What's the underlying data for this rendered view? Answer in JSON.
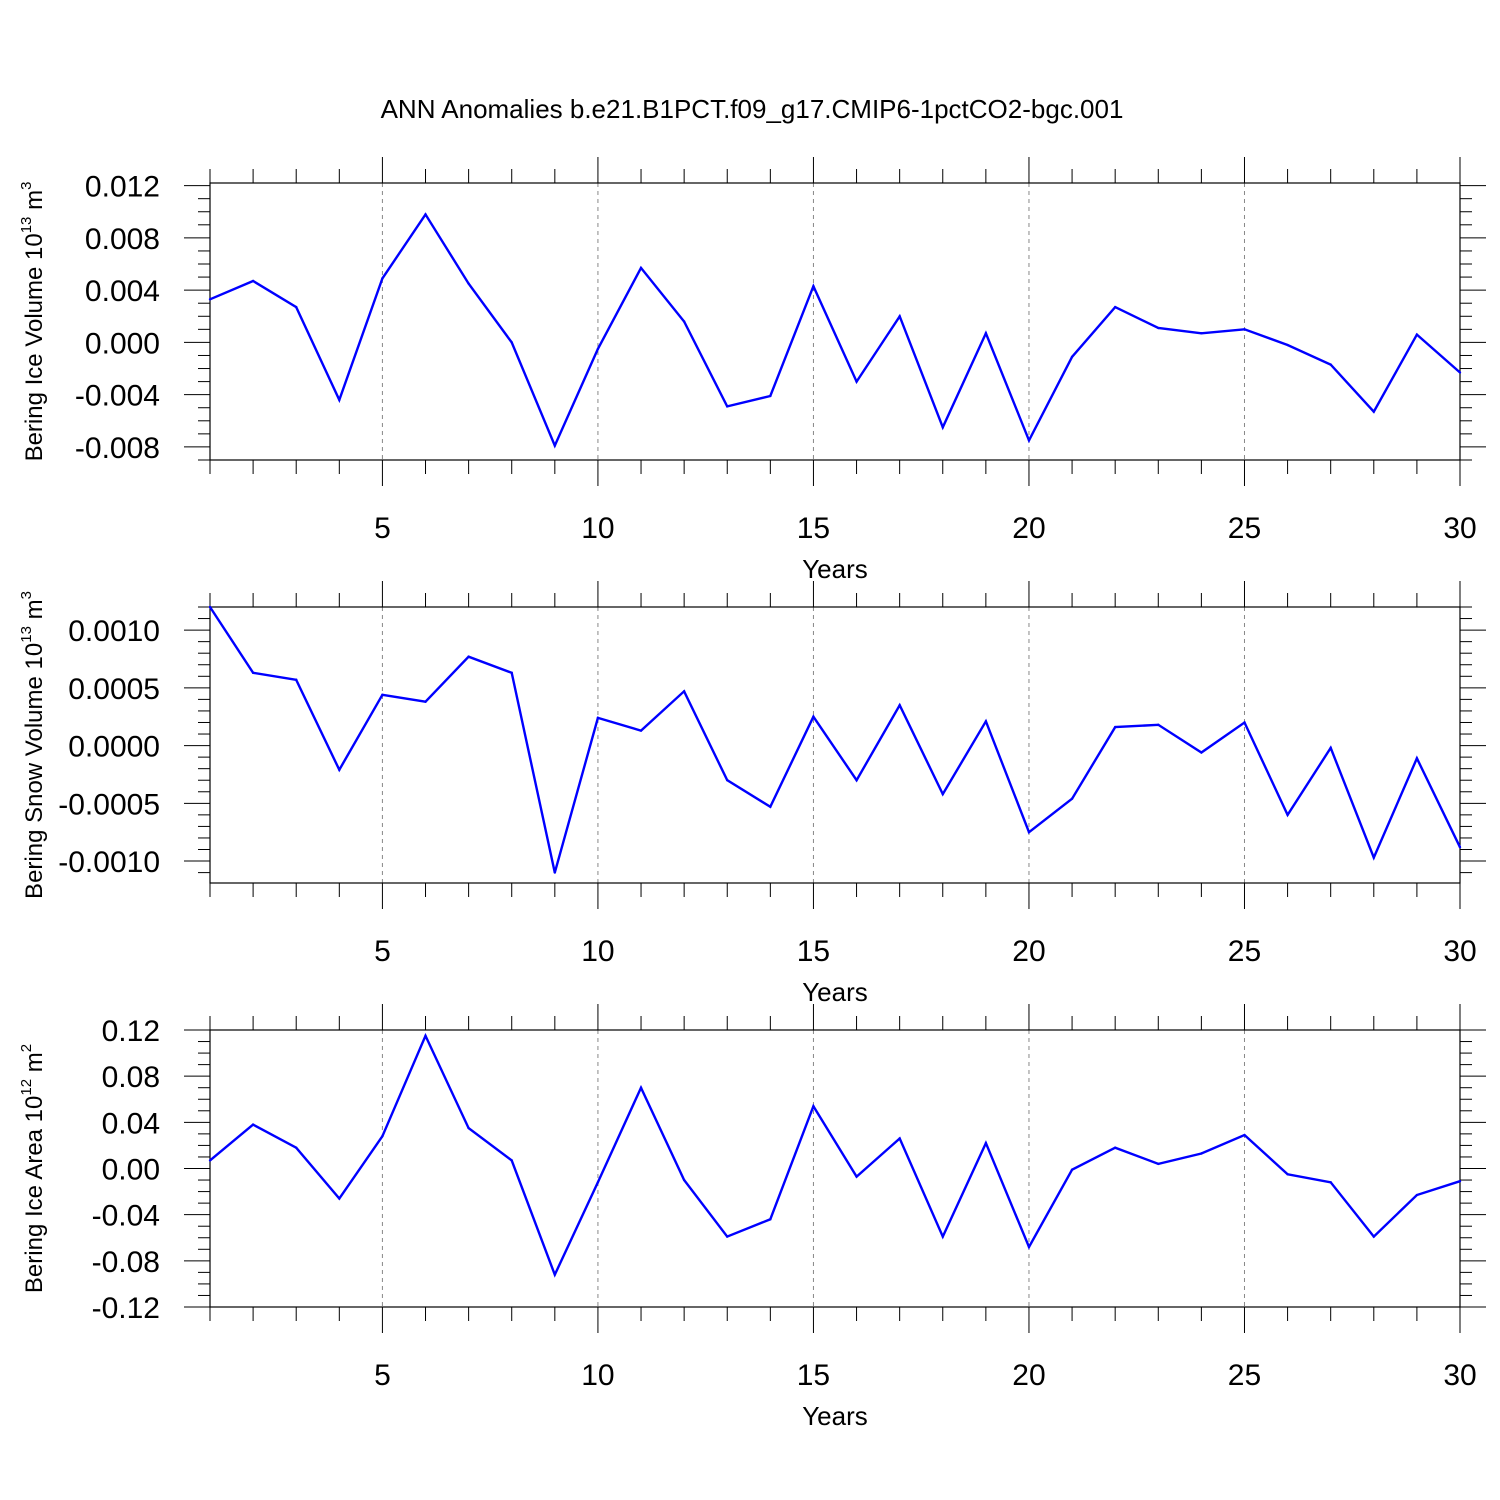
{
  "title": "ANN Anomalies b.e21.B1PCT.f09_g17.CMIP6-1pctCO2-bgc.001",
  "chart_data": [
    {
      "type": "line",
      "ylabel": {
        "base": "Bering Ice Volume 10",
        "exp": "13",
        "unit": " m",
        "unit_exp": "3"
      },
      "xlabel": "Years",
      "xlim": [
        1,
        30
      ],
      "ylim": [
        -0.009,
        0.0122
      ],
      "x_ticks": [
        5,
        10,
        15,
        20,
        25,
        30
      ],
      "x_tick_labels": [
        "5",
        "10",
        "15",
        "20",
        "25",
        "30"
      ],
      "y_ticks": [
        0.012,
        0.008,
        0.004,
        0.0,
        -0.004,
        -0.008
      ],
      "y_tick_labels": [
        "0.012",
        "0.008",
        "0.004",
        "0.000",
        "-0.004",
        "-0.008"
      ],
      "y_minor_step": 0.001,
      "grid": "vertical dashed at major x ticks",
      "color": "#0000ff",
      "x": [
        1,
        2,
        3,
        4,
        5,
        6,
        7,
        8,
        9,
        10,
        11,
        12,
        13,
        14,
        15,
        16,
        17,
        18,
        19,
        20,
        21,
        22,
        23,
        24,
        25,
        26,
        27,
        28,
        29,
        30
      ],
      "values": [
        0.0033,
        0.0047,
        0.0027,
        -0.0044,
        0.0049,
        0.0098,
        0.0045,
        0.0,
        -0.0079,
        -0.0005,
        0.0057,
        0.0016,
        -0.0049,
        -0.0041,
        0.0043,
        -0.003,
        0.002,
        -0.0065,
        0.0007,
        -0.0075,
        -0.0011,
        0.0027,
        0.0011,
        0.0007,
        0.001,
        -0.0002,
        -0.0017,
        -0.0053,
        0.0006,
        -0.0023
      ]
    },
    {
      "type": "line",
      "ylabel": {
        "base": "Bering Snow Volume 10",
        "exp": "13",
        "unit": " m",
        "unit_exp": "3"
      },
      "xlabel": "Years",
      "xlim": [
        1,
        30
      ],
      "ylim": [
        -0.00119,
        0.0012
      ],
      "x_ticks": [
        5,
        10,
        15,
        20,
        25,
        30
      ],
      "x_tick_labels": [
        "5",
        "10",
        "15",
        "20",
        "25",
        "30"
      ],
      "y_ticks": [
        0.001,
        0.0005,
        0.0,
        -0.0005,
        -0.001
      ],
      "y_tick_labels": [
        "0.0010",
        "0.0005",
        "0.0000",
        "-0.0005",
        "-0.0010"
      ],
      "y_minor_step": 0.0001,
      "grid": "vertical dashed at major x ticks",
      "color": "#0000ff",
      "x": [
        1,
        2,
        3,
        4,
        5,
        6,
        7,
        8,
        9,
        10,
        11,
        12,
        13,
        14,
        15,
        16,
        17,
        18,
        19,
        20,
        21,
        22,
        23,
        24,
        25,
        26,
        27,
        28,
        29,
        30
      ],
      "values": [
        0.0012,
        0.00063,
        0.00057,
        -0.00021,
        0.00044,
        0.00038,
        0.00077,
        0.00063,
        -0.0011,
        0.00024,
        0.00013,
        0.00047,
        -0.0003,
        -0.00053,
        0.00025,
        -0.0003,
        0.00035,
        -0.00042,
        0.00021,
        -0.00075,
        -0.00046,
        0.00016,
        0.00018,
        -6e-05,
        0.0002,
        -0.0006,
        -2e-05,
        -0.00097,
        -0.00011,
        -0.00088
      ]
    },
    {
      "type": "line",
      "ylabel": {
        "base": "Bering Ice Area 10",
        "exp": "12",
        "unit": " m",
        "unit_exp": "2"
      },
      "xlabel": "Years",
      "xlim": [
        1,
        30
      ],
      "ylim": [
        -0.12,
        0.12
      ],
      "x_ticks": [
        5,
        10,
        15,
        20,
        25,
        30
      ],
      "x_tick_labels": [
        "5",
        "10",
        "15",
        "20",
        "25",
        "30"
      ],
      "y_ticks": [
        0.12,
        0.08,
        0.04,
        0.0,
        -0.04,
        -0.08,
        -0.12
      ],
      "y_tick_labels": [
        "0.12",
        "0.08",
        "0.04",
        "0.00",
        "-0.04",
        "-0.08",
        "-0.12"
      ],
      "y_minor_step": 0.01,
      "grid": "vertical dashed at major x ticks",
      "color": "#0000ff",
      "x": [
        1,
        2,
        3,
        4,
        5,
        6,
        7,
        8,
        9,
        10,
        11,
        12,
        13,
        14,
        15,
        16,
        17,
        18,
        19,
        20,
        21,
        22,
        23,
        24,
        25,
        26,
        27,
        28,
        29,
        30
      ],
      "values": [
        0.007,
        0.038,
        0.018,
        -0.026,
        0.028,
        0.115,
        0.035,
        0.007,
        -0.092,
        -0.012,
        0.07,
        -0.01,
        -0.059,
        -0.044,
        0.054,
        -0.007,
        0.026,
        -0.059,
        0.022,
        -0.068,
        -0.001,
        0.018,
        0.004,
        0.013,
        0.029,
        -0.005,
        -0.012,
        -0.059,
        -0.023,
        -0.011
      ]
    }
  ]
}
